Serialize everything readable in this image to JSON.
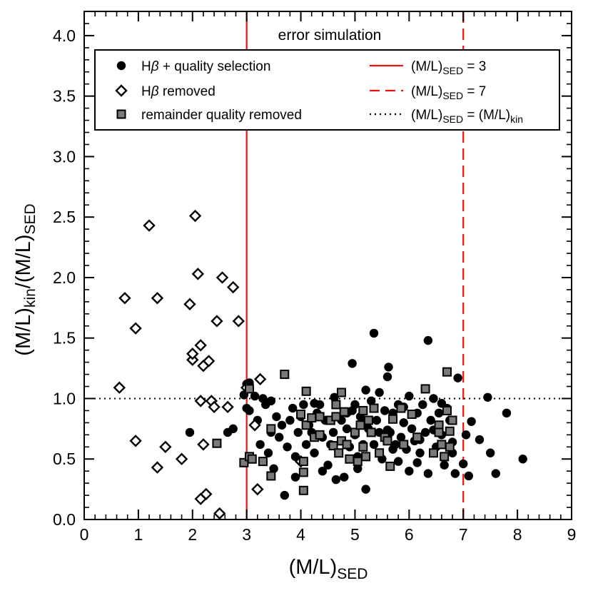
{
  "chart_data": {
    "type": "scatter",
    "title": "",
    "annotation": "error simulation",
    "xlabel": {
      "base": "(M/L)",
      "sub": "SED"
    },
    "ylabel": {
      "base1": "(M/L)",
      "sub1": "kin",
      "mid": "/(M/L)",
      "sub2": "SED"
    },
    "xlim": [
      0,
      9
    ],
    "ylim": [
      0.0,
      4.2
    ],
    "xticks": [
      "0",
      "1",
      "2",
      "3",
      "4",
      "5",
      "6",
      "7",
      "8",
      "9"
    ],
    "yticks": [
      "0.0",
      "0.5",
      "1.0",
      "1.5",
      "2.0",
      "2.5",
      "3.0",
      "3.5",
      "4.0"
    ],
    "ref_lines": [
      {
        "kind": "vertical",
        "x": 3,
        "style": "solid",
        "color": "#ee1111",
        "legend": {
          "base": "(M/L)",
          "sub": "SED",
          "tail": " = 3"
        }
      },
      {
        "kind": "vertical",
        "x": 7,
        "style": "dashed",
        "color": "#ee1111",
        "legend": {
          "base": "(M/L)",
          "sub": "SED",
          "tail": " = 7"
        }
      },
      {
        "kind": "horizontal",
        "y": 1.0,
        "style": "dotted",
        "color": "#000000",
        "legend": {
          "base": "(M/L)",
          "sub": "SED",
          "tail": " = (M/L)",
          "sub2": "kin"
        }
      }
    ],
    "series": [
      {
        "name": "Hβ + quality selection",
        "label_parts": {
          "prefix": "H",
          "greek": "β",
          "suffix": " + quality selection"
        },
        "marker": "filled-circle",
        "color": "#000000",
        "points": [
          [
            1.95,
            0.72
          ],
          [
            2.65,
            0.72
          ],
          [
            2.75,
            0.75
          ],
          [
            2.95,
            1.03
          ],
          [
            3.0,
            0.92
          ],
          [
            3.05,
            0.9
          ],
          [
            3.0,
            1.12
          ],
          [
            3.05,
            1.13
          ],
          [
            3.15,
            1.02
          ],
          [
            3.2,
            0.82
          ],
          [
            3.25,
            0.62
          ],
          [
            3.3,
            1.0
          ],
          [
            3.35,
            0.95
          ],
          [
            3.4,
            0.55
          ],
          [
            3.45,
            0.72
          ],
          [
            3.5,
            0.42
          ],
          [
            3.45,
            0.98
          ],
          [
            3.55,
            0.85
          ],
          [
            3.6,
            0.68
          ],
          [
            3.65,
            0.78
          ],
          [
            3.7,
            0.2
          ],
          [
            3.75,
            0.6
          ],
          [
            3.8,
            0.82
          ],
          [
            3.85,
            0.92
          ],
          [
            3.9,
            0.35
          ],
          [
            3.95,
            0.72
          ],
          [
            4.0,
            0.85
          ],
          [
            4.05,
            0.95
          ],
          [
            4.1,
            0.62
          ],
          [
            4.15,
            0.78
          ],
          [
            4.2,
            0.72
          ],
          [
            4.25,
            0.55
          ],
          [
            4.3,
            0.88
          ],
          [
            4.35,
            0.95
          ],
          [
            4.4,
            0.68
          ],
          [
            4.45,
            0.82
          ],
          [
            4.5,
            0.45
          ],
          [
            4.55,
            0.62
          ],
          [
            4.6,
            0.72
          ],
          [
            4.62,
            1.01
          ],
          [
            4.65,
            0.33
          ],
          [
            4.7,
            0.55
          ],
          [
            4.75,
            0.82
          ],
          [
            4.8,
            0.35
          ],
          [
            4.85,
            0.75
          ],
          [
            4.9,
            0.6
          ],
          [
            4.95,
            1.29
          ],
          [
            4.95,
            0.9
          ],
          [
            5.0,
            0.7
          ],
          [
            5.05,
            0.52
          ],
          [
            5.1,
            0.85
          ],
          [
            5.15,
            0.62
          ],
          [
            5.2,
            0.25
          ],
          [
            5.2,
            1.07
          ],
          [
            5.25,
            0.75
          ],
          [
            5.3,
            0.98
          ],
          [
            5.35,
            0.62
          ],
          [
            5.35,
            1.54
          ],
          [
            5.4,
            0.82
          ],
          [
            5.45,
            0.72
          ],
          [
            5.5,
            0.5
          ],
          [
            5.55,
            0.9
          ],
          [
            5.6,
            1.18
          ],
          [
            5.62,
            1.26
          ],
          [
            5.65,
            0.72
          ],
          [
            5.7,
            0.88
          ],
          [
            5.75,
            0.62
          ],
          [
            5.8,
            0.95
          ],
          [
            5.85,
            0.68
          ],
          [
            5.9,
            0.8
          ],
          [
            5.95,
            0.58
          ],
          [
            6.0,
            0.4
          ],
          [
            6.05,
            0.75
          ],
          [
            6.1,
            0.65
          ],
          [
            6.15,
            0.88
          ],
          [
            6.2,
            0.55
          ],
          [
            6.25,
            0.95
          ],
          [
            6.3,
            0.72
          ],
          [
            6.35,
            0.38
          ],
          [
            6.35,
            1.48
          ],
          [
            6.4,
            0.82
          ],
          [
            6.45,
            1.0
          ],
          [
            6.5,
            0.6
          ],
          [
            6.55,
            0.88
          ],
          [
            6.6,
            0.7
          ],
          [
            6.65,
            0.45
          ],
          [
            6.7,
            0.92
          ],
          [
            6.75,
            0.82
          ],
          [
            6.8,
            0.55
          ],
          [
            6.85,
            0.38
          ],
          [
            6.9,
            1.17
          ],
          [
            7.0,
            0.46
          ],
          [
            7.05,
            0.7
          ],
          [
            7.1,
            0.36
          ],
          [
            7.15,
            0.81
          ],
          [
            7.3,
            0.66
          ],
          [
            7.45,
            1.01
          ],
          [
            7.5,
            0.55
          ],
          [
            7.6,
            0.38
          ],
          [
            7.8,
            0.88
          ],
          [
            8.1,
            0.5
          ],
          [
            5.0,
            0.95
          ],
          [
            5.6,
            0.74
          ],
          [
            6.0,
            1.02
          ],
          [
            6.2,
            0.66
          ],
          [
            5.8,
            0.48
          ],
          [
            4.4,
            0.4
          ],
          [
            5.45,
            1.05
          ],
          [
            6.6,
            0.96
          ],
          [
            4.85,
            0.88
          ],
          [
            5.15,
            0.79
          ],
          [
            5.9,
            0.93
          ],
          [
            6.45,
            0.74
          ],
          [
            4.25,
            0.96
          ],
          [
            3.9,
            0.52
          ],
          [
            5.05,
            0.42
          ],
          [
            6.15,
            0.47
          ],
          [
            5.7,
            0.58
          ],
          [
            6.8,
            0.64
          ]
        ]
      },
      {
        "name": "Hβ removed",
        "label_parts": {
          "prefix": "H",
          "greek": "β",
          "suffix": " removed"
        },
        "marker": "open-diamond",
        "color": "#000000",
        "points": [
          [
            0.65,
            1.09
          ],
          [
            0.75,
            1.83
          ],
          [
            0.95,
            1.58
          ],
          [
            0.95,
            0.65
          ],
          [
            1.2,
            2.43
          ],
          [
            1.35,
            1.83
          ],
          [
            1.35,
            0.43
          ],
          [
            1.5,
            0.6
          ],
          [
            1.8,
            0.5
          ],
          [
            1.95,
            1.78
          ],
          [
            2.0,
            1.32
          ],
          [
            2.0,
            1.37
          ],
          [
            2.05,
            2.51
          ],
          [
            2.1,
            2.03
          ],
          [
            2.15,
            1.44
          ],
          [
            2.15,
            0.98
          ],
          [
            2.2,
            1.27
          ],
          [
            2.2,
            0.62
          ],
          [
            2.15,
            0.17
          ],
          [
            2.25,
            0.21
          ],
          [
            2.3,
            1.31
          ],
          [
            2.35,
            0.98
          ],
          [
            2.4,
            0.93
          ],
          [
            2.45,
            1.64
          ],
          [
            2.5,
            0.05
          ],
          [
            2.55,
            2.0
          ],
          [
            2.65,
            0.93
          ],
          [
            2.75,
            1.92
          ],
          [
            2.85,
            1.64
          ],
          [
            3.0,
            1.09
          ],
          [
            3.15,
            0.78
          ],
          [
            3.2,
            0.25
          ],
          [
            3.25,
            1.16
          ],
          [
            4.0,
            0.48
          ]
        ]
      },
      {
        "name": "remainder quality removed",
        "label_parts": {
          "prefix": "",
          "greek": "",
          "suffix": "remainder quality removed"
        },
        "marker": "gray-square",
        "color": "#7a7a7a",
        "points": [
          [
            2.45,
            0.63
          ],
          [
            2.95,
            0.47
          ],
          [
            3.05,
            0.52
          ],
          [
            3.05,
            1.08
          ],
          [
            3.1,
            0.5
          ],
          [
            3.3,
            0.48
          ],
          [
            3.45,
            0.36
          ],
          [
            3.45,
            0.75
          ],
          [
            3.7,
            1.2
          ],
          [
            4.0,
            0.87
          ],
          [
            4.05,
            0.48
          ],
          [
            4.05,
            0.39
          ],
          [
            4.05,
            0.24
          ],
          [
            4.1,
            1.06
          ],
          [
            4.1,
            0.78
          ],
          [
            4.2,
            0.84
          ],
          [
            4.25,
            0.68
          ],
          [
            4.35,
            0.7
          ],
          [
            4.35,
            0.85
          ],
          [
            4.55,
            0.82
          ],
          [
            4.65,
            0.85
          ],
          [
            4.6,
            0.61
          ],
          [
            4.65,
            0.95
          ],
          [
            4.7,
            0.55
          ],
          [
            4.75,
            1.05
          ],
          [
            4.75,
            0.65
          ],
          [
            4.8,
            0.89
          ],
          [
            4.85,
            0.62
          ],
          [
            4.9,
            0.5
          ],
          [
            5.0,
            0.72
          ],
          [
            5.05,
            0.48
          ],
          [
            5.1,
            0.78
          ],
          [
            5.15,
            0.9
          ],
          [
            5.15,
            0.6
          ],
          [
            5.2,
            0.52
          ],
          [
            5.25,
            0.82
          ],
          [
            5.3,
            0.72
          ],
          [
            5.35,
            0.92
          ],
          [
            5.45,
            0.55
          ],
          [
            5.55,
            0.68
          ],
          [
            5.6,
            0.65
          ],
          [
            5.65,
            0.44
          ],
          [
            5.85,
            0.92
          ],
          [
            5.9,
            0.62
          ],
          [
            6.05,
            0.87
          ],
          [
            6.15,
            0.68
          ],
          [
            6.3,
            1.08
          ],
          [
            6.45,
            0.55
          ],
          [
            6.55,
            0.78
          ],
          [
            6.6,
            0.62
          ],
          [
            6.65,
            0.52
          ],
          [
            6.7,
            0.9
          ],
          [
            6.7,
            1.22
          ],
          [
            6.75,
            0.6
          ],
          [
            6.75,
            0.73
          ],
          [
            6.8,
            0.82
          ],
          [
            6.55,
            0.72
          ],
          [
            5.7,
            0.83
          ]
        ]
      }
    ],
    "legend_placement": "top-left"
  }
}
